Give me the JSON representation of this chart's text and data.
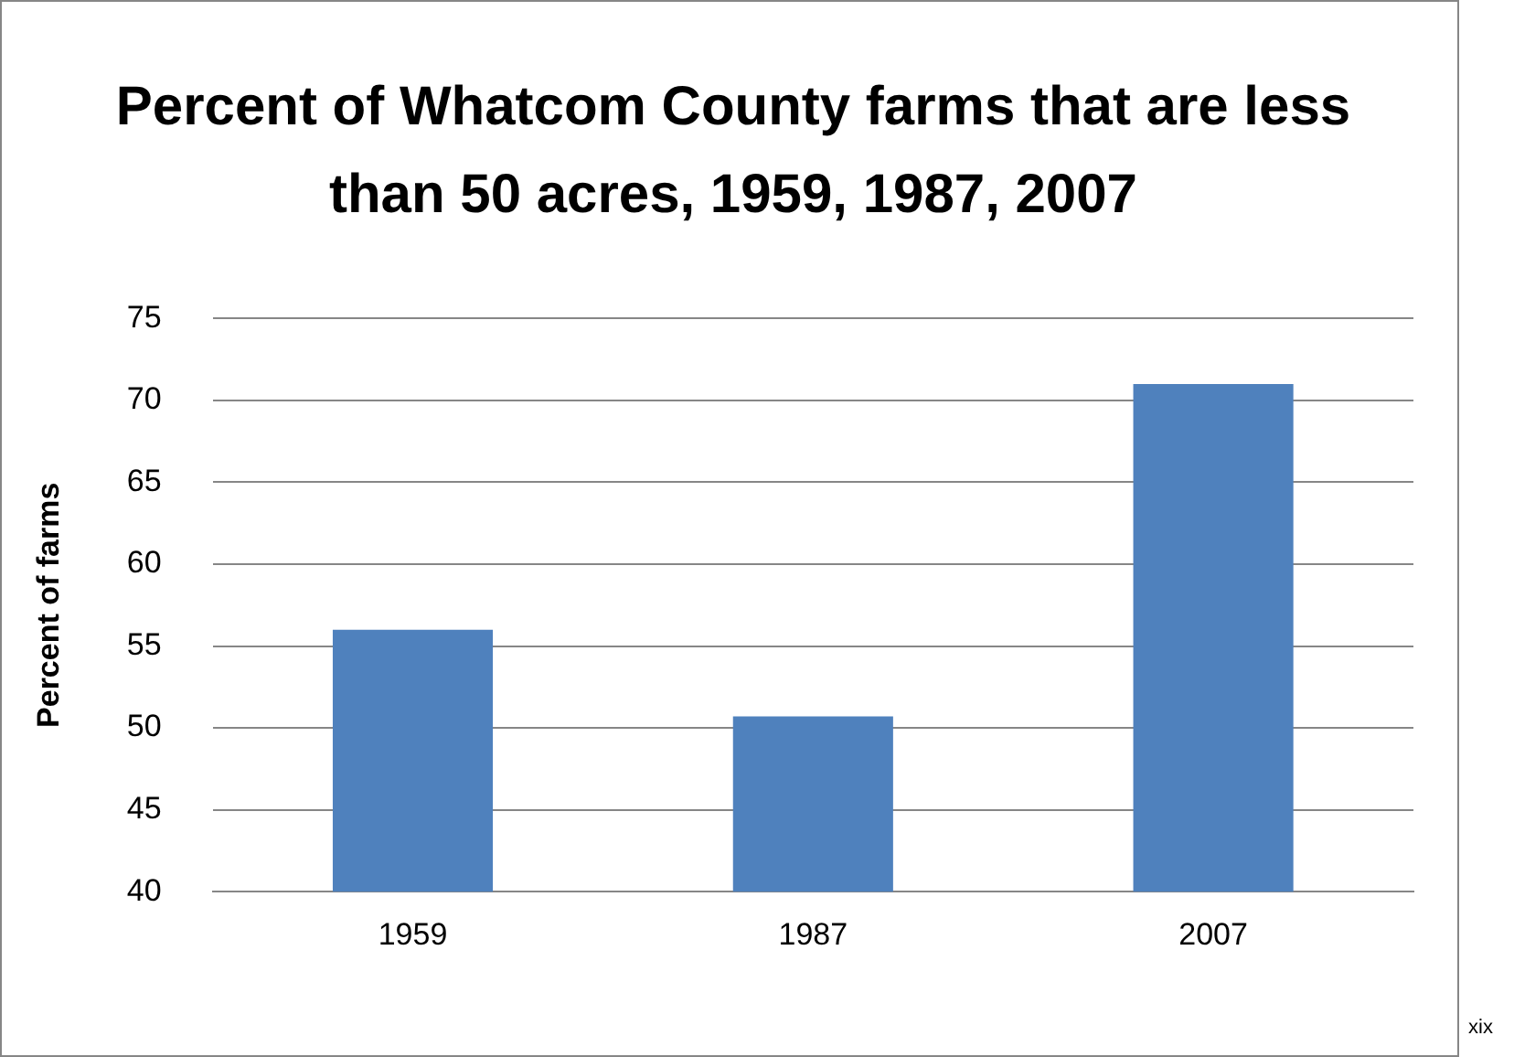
{
  "chart_data": {
    "type": "bar",
    "title": "Percent of Whatcom County farms that are less than 50 acres, 1959, 1987, 2007",
    "ylabel": "Percent of farms",
    "categories": [
      "1959",
      "1987",
      "2007"
    ],
    "values": [
      56,
      50.7,
      71
    ],
    "color": "#4f81bd",
    "ylim": [
      40,
      75
    ],
    "yticks": [
      40,
      45,
      50,
      55,
      60,
      65,
      70,
      75
    ],
    "grid": "y",
    "legend": false,
    "annotations": [
      "xix"
    ]
  }
}
